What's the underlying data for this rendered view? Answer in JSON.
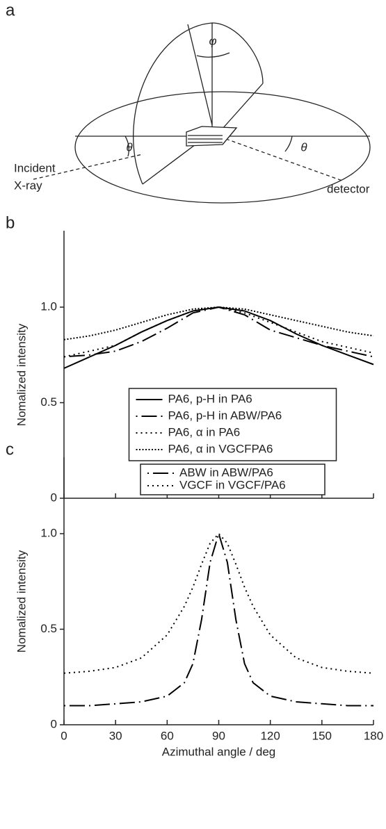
{
  "diagram": {
    "panel_label": "a",
    "phi": "φ",
    "theta_left": "θ",
    "theta_right": "θ",
    "incident": [
      "Incident",
      "X-ray"
    ],
    "detector": "detector"
  },
  "chart_data": [
    {
      "type": "line",
      "panel_label": "b",
      "ylabel": "Nomalized intensity",
      "x": [
        0,
        15,
        30,
        45,
        60,
        75,
        90,
        105,
        120,
        135,
        150,
        165,
        180
      ],
      "xlim": [
        0,
        180
      ],
      "xticks": [
        0,
        30,
        60,
        90,
        120,
        150,
        180
      ],
      "show_xtick_labels": false,
      "ylim": [
        0,
        1.4
      ],
      "yticks": [
        0,
        0.5,
        {
          "value": 1,
          "label": "1.0"
        }
      ],
      "legend_loc": "lower center",
      "series": [
        {
          "name": "PA6, p-H in PA6",
          "color": "#000000",
          "line_style": "solid",
          "values": [
            0.68,
            0.74,
            0.8,
            0.87,
            0.93,
            0.98,
            1.0,
            0.98,
            0.93,
            0.86,
            0.8,
            0.75,
            0.7
          ]
        },
        {
          "name": "PA6, p-H in ABW/PA6",
          "color": "#000000",
          "line_style": "dashdot",
          "values": [
            0.74,
            0.75,
            0.77,
            0.82,
            0.89,
            0.97,
            1.0,
            0.96,
            0.88,
            0.84,
            0.8,
            0.77,
            0.74
          ]
        },
        {
          "name": "PA6, α in PA6",
          "color": "#000000",
          "line_style": "dotted",
          "values": [
            0.74,
            0.77,
            0.8,
            0.87,
            0.93,
            0.98,
            1.0,
            0.97,
            0.92,
            0.87,
            0.82,
            0.79,
            0.76
          ]
        },
        {
          "name": "PA6, α in VGCFPA6",
          "color": "#000000",
          "line_style": "dense-dotted",
          "values": [
            0.83,
            0.85,
            0.88,
            0.92,
            0.96,
            0.99,
            1.0,
            0.99,
            0.96,
            0.93,
            0.9,
            0.87,
            0.85
          ]
        }
      ]
    },
    {
      "type": "line",
      "panel_label": "c",
      "ylabel": "Nomalized intensity",
      "xlabel": "Azimuthal angle / deg",
      "x": [
        0,
        15,
        30,
        45,
        60,
        70,
        75,
        80,
        85,
        90,
        95,
        100,
        105,
        110,
        120,
        135,
        150,
        165,
        180
      ],
      "xlim": [
        0,
        180
      ],
      "xticks": [
        0,
        30,
        60,
        90,
        120,
        150,
        180
      ],
      "show_xtick_labels": true,
      "ylim": [
        0,
        1.4
      ],
      "yticks": [
        0,
        0.5,
        {
          "value": 1,
          "label": "1.0"
        }
      ],
      "legend_loc": "upper center",
      "series": [
        {
          "name": "ABW in ABW/PA6",
          "color": "#000000",
          "line_style": "dashdot",
          "values": [
            0.1,
            0.1,
            0.11,
            0.12,
            0.15,
            0.22,
            0.32,
            0.55,
            0.85,
            1.0,
            0.85,
            0.55,
            0.32,
            0.22,
            0.15,
            0.12,
            0.11,
            0.1,
            0.1
          ]
        },
        {
          "name": "VGCF in VGCF/PA6",
          "color": "#000000",
          "line_style": "dotted",
          "values": [
            0.27,
            0.28,
            0.3,
            0.35,
            0.47,
            0.62,
            0.72,
            0.84,
            0.95,
            1.0,
            0.95,
            0.84,
            0.72,
            0.62,
            0.47,
            0.35,
            0.3,
            0.28,
            0.27
          ]
        }
      ]
    }
  ]
}
